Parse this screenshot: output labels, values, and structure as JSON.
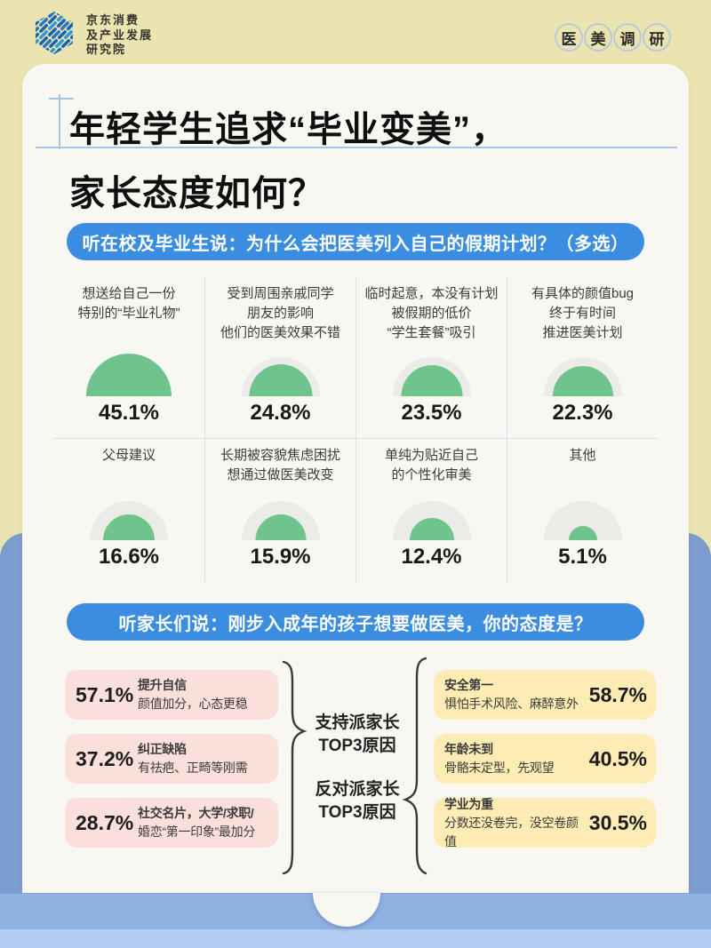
{
  "colors": {
    "background_tan": "#ece4b0",
    "card_white": "#f8f7f1",
    "banner_blue": "#3b8de2",
    "gauge_green": "#6ec48b",
    "gauge_track_gray": "#ebebe7",
    "support_pink": "#fbdfda",
    "oppose_yellow": "#fdecb3",
    "envelope_back_blue": "#7d9cd0",
    "envelope_front_blue": "#8fb2e3",
    "envelope_strip_blue": "#b3cdf1",
    "guide_line_blue": "#a5c6e8"
  },
  "header": {
    "logo_lines": "京东消费\n及产业发展\n研究院",
    "badge_chars": [
      "医",
      "美",
      "调",
      "研"
    ]
  },
  "title": {
    "line1": "年轻学生追求“毕业变美”，",
    "line2": "家长态度如何？"
  },
  "chart_data": [
    {
      "type": "bar",
      "style": "semicircle-gauge-grid",
      "title": "听在校及毕业生说：为什么会把医美列入自己的假期计划？（多选）",
      "unit": "%",
      "categories": [
        "想送给自己一份\n特别的“毕业礼物”",
        "受到周围亲戚同学\n朋友的影响\n他们的医美效果不错",
        "临时起意，本没有计划\n被假期的低价\n“学生套餐”吸引",
        "有具体的颜值bug\n终于有时间\n推进医美计划",
        "父母建议",
        "长期被容貌焦虑困扰\n想通过做医美改变",
        "单纯为贴近自己\n的个性化审美",
        "其他"
      ],
      "values": [
        45.1,
        24.8,
        23.5,
        22.3,
        16.6,
        15.9,
        12.4,
        5.1
      ],
      "value_labels": [
        "45.1%",
        "24.8%",
        "23.5%",
        "22.3%",
        "16.6%",
        "15.9%",
        "12.4%",
        "5.1%"
      ]
    },
    {
      "type": "bar",
      "style": "grouped-stat-cards",
      "title": "听家长们说：刚步入成年的孩子想要做医美，你的态度是？",
      "series": [
        {
          "name": "支持派家长\nTOP3原因",
          "items": [
            {
              "value": 57.1,
              "value_label": "57.1%",
              "title": "提升自信",
              "desc": "颜值加分，心态更稳"
            },
            {
              "value": 37.2,
              "value_label": "37.2%",
              "title": "纠正缺陷",
              "desc": "有祛疤、正畸等刚需"
            },
            {
              "value": 28.7,
              "value_label": "28.7%",
              "title": "社交名片，大学/求职/",
              "desc": "婚恋“第一印象”最加分"
            }
          ]
        },
        {
          "name": "反对派家长\nTOP3原因",
          "items": [
            {
              "value": 58.7,
              "value_label": "58.7%",
              "title": "安全第一",
              "desc": "惧怕手术风险、麻醉意外"
            },
            {
              "value": 40.5,
              "value_label": "40.5%",
              "title": "年龄未到",
              "desc": "骨骼未定型，先观望"
            },
            {
              "value": 30.5,
              "value_label": "30.5%",
              "title": "学业为重",
              "desc": "分数还没卷完，没空卷颜值"
            }
          ]
        }
      ]
    }
  ]
}
